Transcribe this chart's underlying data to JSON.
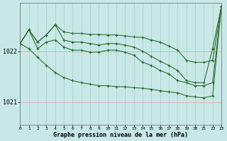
{
  "title": "Graphe pression niveau de la mer (hPa)",
  "xlabel_ticks": [
    "0",
    "1",
    "2",
    "3",
    "4",
    "5",
    "6",
    "7",
    "8",
    "9",
    "10",
    "11",
    "12",
    "13",
    "14",
    "15",
    "16",
    "17",
    "18",
    "19",
    "20",
    "21",
    "22",
    "23"
  ],
  "yticks": [
    1021,
    1022
  ],
  "ylim": [
    1020.55,
    1022.95
  ],
  "xlim": [
    0,
    23
  ],
  "bg_color": "#c8e8e8",
  "line_color": "#2d6e2d",
  "series": {
    "line1": [
      1022.15,
      1022.42,
      1022.18,
      1022.32,
      1022.52,
      1022.38,
      1022.35,
      1022.35,
      1022.33,
      1022.33,
      1022.32,
      1022.32,
      1022.3,
      1022.28,
      1022.27,
      1022.22,
      1022.18,
      1022.1,
      1022.02,
      1021.82,
      1021.78,
      1021.78,
      1021.82,
      1022.88
    ],
    "line2": [
      1022.15,
      1022.42,
      1022.18,
      1022.32,
      1022.52,
      1022.22,
      1022.18,
      1022.18,
      1022.15,
      1022.12,
      1022.15,
      1022.15,
      1022.12,
      1022.08,
      1022.0,
      1021.9,
      1021.8,
      1021.72,
      1021.62,
      1021.42,
      1021.38,
      1021.38,
      1022.05,
      1022.88
    ],
    "line3": [
      1022.15,
      1022.42,
      1022.05,
      1022.18,
      1022.22,
      1022.08,
      1022.02,
      1022.02,
      1021.98,
      1021.98,
      1022.02,
      1022.02,
      1021.98,
      1021.92,
      1021.78,
      1021.72,
      1021.62,
      1021.55,
      1021.42,
      1021.38,
      1021.32,
      1021.32,
      1021.38,
      1022.88
    ],
    "line4": [
      1022.15,
      1022.05,
      1021.88,
      1021.72,
      1021.58,
      1021.48,
      1021.42,
      1021.38,
      1021.35,
      1021.32,
      1021.32,
      1021.3,
      1021.3,
      1021.28,
      1021.27,
      1021.25,
      1021.22,
      1021.2,
      1021.18,
      1021.12,
      1021.1,
      1021.08,
      1021.12,
      1022.88
    ]
  }
}
